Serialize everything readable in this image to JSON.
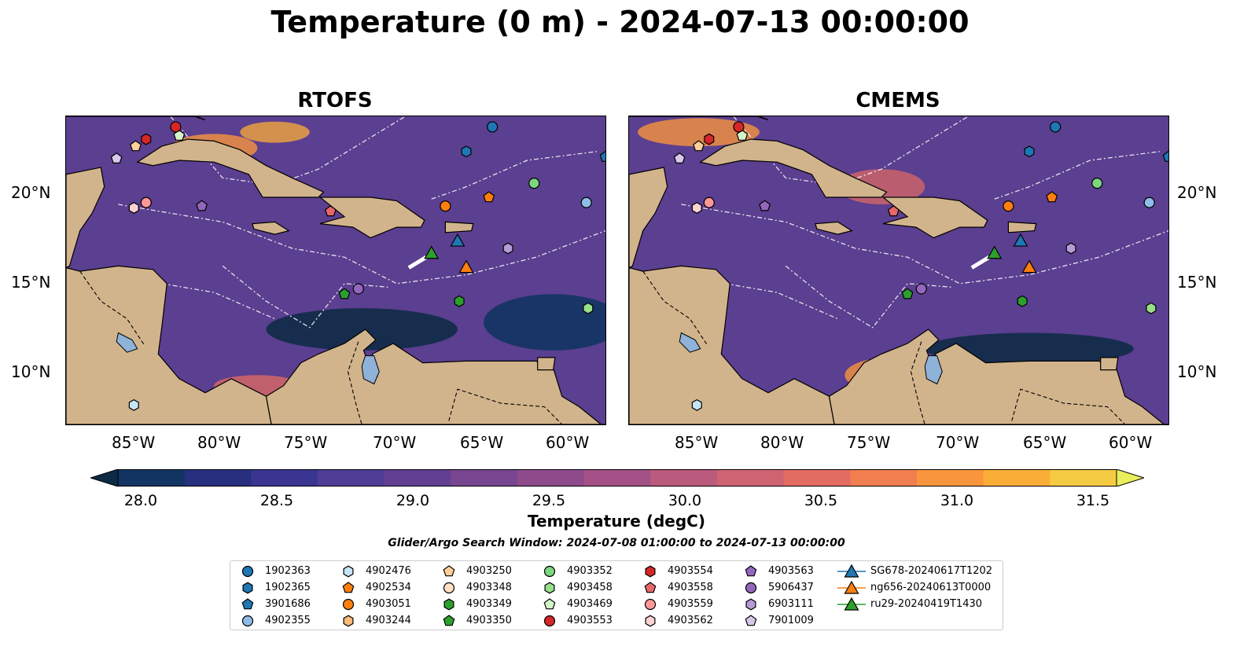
{
  "title": "Temperature (0 m) - 2024-07-13 00:00:00",
  "panels": [
    {
      "title": "RTOFS",
      "id": "rtofs"
    },
    {
      "title": "CMEMS",
      "id": "cmems"
    }
  ],
  "axes": {
    "lon_labels": [
      "85°W",
      "80°W",
      "75°W",
      "70°W",
      "65°W",
      "60°W"
    ],
    "lat_labels": [
      "20°N",
      "15°N",
      "10°N"
    ]
  },
  "colorbar": {
    "label": "Temperature (degC)",
    "ticks": [
      "28.0",
      "28.5",
      "29.0",
      "29.5",
      "30.0",
      "30.5",
      "31.0",
      "31.5"
    ],
    "min": 28.0,
    "max": 31.75,
    "colors": [
      "#0c2a43",
      "#123463",
      "#26307e",
      "#3a3591",
      "#4f3e95",
      "#623f92",
      "#784590",
      "#8d4b8c",
      "#a35186",
      "#ba5a7c",
      "#cf6371",
      "#e26c61",
      "#f07e4f",
      "#f8953d",
      "#fbae37",
      "#f6cb44",
      "#e8ee5c"
    ]
  },
  "search_window": "Glider/Argo Search Window: 2024-07-08 01:00:00 to 2024-07-13 00:00:00",
  "legend": [
    {
      "label": "1902363",
      "marker": "circle",
      "color": "#1f77b4"
    },
    {
      "label": "1902365",
      "marker": "hexagon",
      "color": "#1f77b4"
    },
    {
      "label": "3901686",
      "marker": "pentagon",
      "color": "#1f77b4"
    },
    {
      "label": "4902355",
      "marker": "circle",
      "color": "#8fbde6"
    },
    {
      "label": "4902476",
      "marker": "hexagon",
      "color": "#c6e5f5"
    },
    {
      "label": "4902534",
      "marker": "pentagon",
      "color": "#ff7f0e"
    },
    {
      "label": "4903051",
      "marker": "circle",
      "color": "#ff7f0e"
    },
    {
      "label": "4903244",
      "marker": "hexagon",
      "color": "#ffbb78"
    },
    {
      "label": "4903250",
      "marker": "pentagon",
      "color": "#ffcf99"
    },
    {
      "label": "4903348",
      "marker": "circle",
      "color": "#ffe0c2"
    },
    {
      "label": "4903349",
      "marker": "hexagon",
      "color": "#2ca02c"
    },
    {
      "label": "4903350",
      "marker": "pentagon",
      "color": "#2ca02c"
    },
    {
      "label": "4903352",
      "marker": "circle",
      "color": "#7dd67d"
    },
    {
      "label": "4903458",
      "marker": "hexagon",
      "color": "#98df8a"
    },
    {
      "label": "4903469",
      "marker": "pentagon",
      "color": "#d4f5c8"
    },
    {
      "label": "4903553",
      "marker": "circle",
      "color": "#d62728"
    },
    {
      "label": "4903554",
      "marker": "hexagon",
      "color": "#d62728"
    },
    {
      "label": "4903558",
      "marker": "pentagon",
      "color": "#e8676a"
    },
    {
      "label": "4903559",
      "marker": "circle",
      "color": "#ff9896"
    },
    {
      "label": "4903562",
      "marker": "hexagon",
      "color": "#ffd2d2"
    },
    {
      "label": "4903563",
      "marker": "pentagon",
      "color": "#9467bd"
    },
    {
      "label": "5906437",
      "marker": "circle",
      "color": "#9467bd"
    },
    {
      "label": "6903111",
      "marker": "hexagon",
      "color": "#b59cd6"
    },
    {
      "label": "7901009",
      "marker": "pentagon",
      "color": "#d7c8ec"
    },
    {
      "label": "SG678-20240617T1202",
      "marker": "triangle-line",
      "color": "#1f77b4"
    },
    {
      "label": "ng656-20240613T0000",
      "marker": "triangle-line",
      "color": "#ff7f0e"
    },
    {
      "label": "ru29-20240419T1430",
      "marker": "triangle-line",
      "color": "#2ca02c"
    }
  ],
  "map_markers": [
    {
      "id": "1902363",
      "lon": -64.5,
      "lat": 23.9,
      "marker": "circle",
      "color": "#1f77b4"
    },
    {
      "id": "1902365",
      "lon": -66.0,
      "lat": 22.5,
      "marker": "hexagon",
      "color": "#1f77b4"
    },
    {
      "id": "3901686",
      "lon": -58.0,
      "lat": 22.2,
      "marker": "pentagon",
      "color": "#1f77b4"
    },
    {
      "id": "4902355",
      "lon": -59.1,
      "lat": 19.6,
      "marker": "circle",
      "color": "#8fbde6"
    },
    {
      "id": "4902476",
      "lon": -85.1,
      "lat": 8.1,
      "marker": "hexagon",
      "color": "#c6e5f5"
    },
    {
      "id": "4902534",
      "lon": -64.7,
      "lat": 19.9,
      "marker": "pentagon",
      "color": "#ff7f0e"
    },
    {
      "id": "4903051",
      "lon": -67.2,
      "lat": 19.4,
      "marker": "circle",
      "color": "#ff7f0e"
    },
    {
      "id": "4903349",
      "lon": -66.4,
      "lat": 14.0,
      "marker": "hexagon",
      "color": "#2ca02c"
    },
    {
      "id": "4903350",
      "lon": -73.0,
      "lat": 14.4,
      "marker": "pentagon",
      "color": "#2ca02c"
    },
    {
      "id": "4903352",
      "lon": -62.1,
      "lat": 20.7,
      "marker": "circle",
      "color": "#7dd67d"
    },
    {
      "id": "4903458",
      "lon": -59.0,
      "lat": 13.6,
      "marker": "hexagon",
      "color": "#98df8a"
    },
    {
      "id": "4903469",
      "lon": -82.5,
      "lat": 23.4,
      "marker": "pentagon",
      "color": "#d4f5c8"
    },
    {
      "id": "4903553",
      "lon": -82.7,
      "lat": 23.9,
      "marker": "circle",
      "color": "#d62728"
    },
    {
      "id": "4903554",
      "lon": -84.4,
      "lat": 23.2,
      "marker": "hexagon",
      "color": "#d62728"
    },
    {
      "id": "4903558",
      "lon": -73.8,
      "lat": 19.1,
      "marker": "pentagon",
      "color": "#e8676a"
    },
    {
      "id": "4903559",
      "lon": -84.4,
      "lat": 19.6,
      "marker": "circle",
      "color": "#ff9896"
    },
    {
      "id": "4903562",
      "lon": -85.1,
      "lat": 19.3,
      "marker": "hexagon",
      "color": "#ffd2d2"
    },
    {
      "id": "4903563",
      "lon": -81.2,
      "lat": 19.4,
      "marker": "pentagon",
      "color": "#9467bd"
    },
    {
      "id": "5906437",
      "lon": -72.2,
      "lat": 14.7,
      "marker": "circle",
      "color": "#9467bd"
    },
    {
      "id": "6903111",
      "lon": -63.6,
      "lat": 17.0,
      "marker": "hexagon",
      "color": "#b59cd6"
    },
    {
      "id": "7901009",
      "lon": -86.1,
      "lat": 22.1,
      "marker": "pentagon",
      "color": "#d7c8ec"
    },
    {
      "id": "4903250",
      "lon": -85.0,
      "lat": 22.8,
      "marker": "pentagon",
      "color": "#ffcf99"
    },
    {
      "id": "SG678-20240617T1202",
      "lon": -66.5,
      "lat": 17.4,
      "marker": "triangle",
      "color": "#1f77b4"
    },
    {
      "id": "ng656-20240613T0000",
      "lon": -66.0,
      "lat": 15.9,
      "marker": "triangle",
      "color": "#ff7f0e"
    },
    {
      "id": "ru29-20240419T1430",
      "lon": -68.0,
      "lat": 16.7,
      "marker": "triangle",
      "color": "#2ca02c"
    }
  ]
}
